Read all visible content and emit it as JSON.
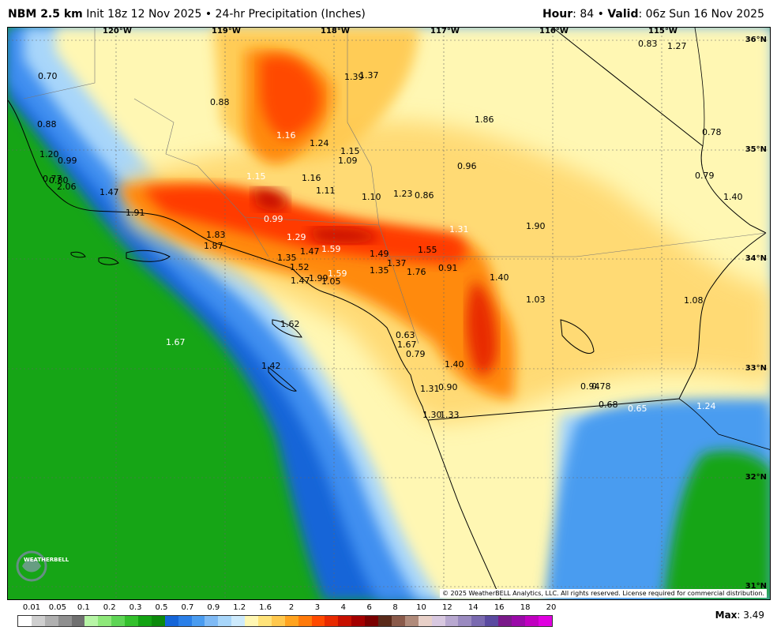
{
  "header": {
    "model": "NBM 2.5 km",
    "init": "Init 18z 12 Nov 2025",
    "separator": "•",
    "product": "24-hr Precipitation (Inches)",
    "hour_label": "Hour",
    "hour_value": ": 84 •",
    "valid_label": "Valid",
    "valid_value": ": 06z Sun 16 Nov 2025"
  },
  "longitudes": [
    "120°W",
    "119°W",
    "118°W",
    "117°W",
    "116°W",
    "115°W"
  ],
  "latitudes": [
    "36°N",
    "35°N",
    "34°N",
    "33°N",
    "32°N",
    "31°N"
  ],
  "precip_labels": [
    "0.70",
    "0.88",
    "0.83",
    "1.27",
    "1.39",
    "1.37",
    "0.88",
    "1.20",
    "1.86",
    "1.16",
    "1.24",
    "1.15",
    "1.09",
    "0.78",
    "0.99",
    "0.96",
    "0.79",
    "0.77",
    "0.80",
    "2.06",
    "1.15",
    "1.16",
    "1.11",
    "1.10",
    "1.23",
    "0.86",
    "1.40",
    "1.47",
    "1.91",
    "0.99",
    "1.90",
    "1.31",
    "1.83",
    "1.29",
    "1.87",
    "1.59",
    "1.47",
    "1.49",
    "1.55",
    "1.35",
    "1.37",
    "1.52",
    "1.35",
    "1.76",
    "0.91",
    "1.40",
    "1.47",
    "1.99",
    "1.59",
    "1.05",
    "1.03",
    "1.08",
    "1.62",
    "0.63",
    "1.67",
    "1.67",
    "0.79",
    "1.42",
    "1.40",
    "1.31",
    "0.90",
    "0.94",
    "0.78",
    "0.68",
    "0.65",
    "1.24",
    "1.30",
    "1.33"
  ],
  "legend": {
    "ticks": [
      "0.01",
      "0.05",
      "0.1",
      "0.2",
      "0.3",
      "0.5",
      "0.7",
      "0.9",
      "1.2",
      "1.6",
      "2",
      "3",
      "4",
      "6",
      "8",
      "10",
      "12",
      "14",
      "16",
      "18",
      "20"
    ],
    "colors": [
      "#ffffff",
      "#cfcfcf",
      "#b0b0b0",
      "#8f8f8f",
      "#707070",
      "#b7f5a6",
      "#8ee87a",
      "#5ed555",
      "#33c02c",
      "#13a313",
      "#0c8a0c",
      "#1565d8",
      "#2a7fe8",
      "#4a9cf0",
      "#7fbaf5",
      "#a8d6fa",
      "#cdeafc",
      "#fff7b3",
      "#ffe37a",
      "#ffc84d",
      "#ffa31f",
      "#ff7a0a",
      "#ff4a00",
      "#e82a00",
      "#c71000",
      "#a40000",
      "#7a0000",
      "#5a2a1a",
      "#8a5a4a",
      "#b08a7a",
      "#e8d0c8",
      "#d8c8e0",
      "#b8a8d0",
      "#9a8ac0",
      "#7a6ab0",
      "#5a4aa0",
      "#7a1a8a",
      "#9a0aa8",
      "#c000c0",
      "#e000e0"
    ]
  },
  "copyright": "© 2025 WeatherBELL Analytics, LLC. All rights reserved. License required for commercial distribution.",
  "logo_text": "WEATHERBELL",
  "max_label": "Max",
  "max_value": ": 3.49",
  "icons": [
    "weatherbell-logo-icon"
  ]
}
